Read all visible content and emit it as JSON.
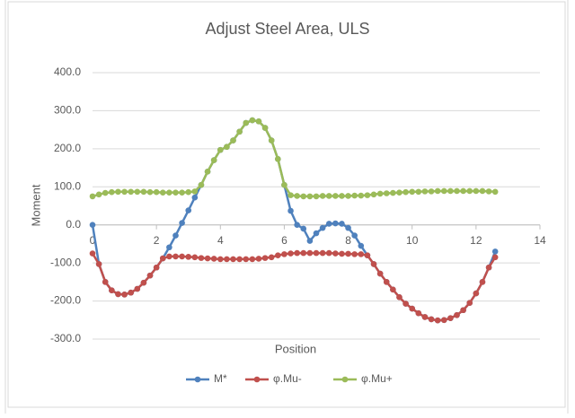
{
  "chart_data": {
    "type": "line",
    "title": "Adjust Steel Area, ULS",
    "x_label": "Position",
    "y_label": "Moment",
    "x": [
      0,
      0.2,
      0.4,
      0.6,
      0.8,
      1.0,
      1.2,
      1.4,
      1.6,
      1.8,
      2.0,
      2.2,
      2.4,
      2.6,
      2.8,
      3.0,
      3.2,
      3.4,
      3.6,
      3.8,
      4.0,
      4.2,
      4.4,
      4.6,
      4.8,
      5.0,
      5.2,
      5.4,
      5.6,
      5.8,
      6.0,
      6.2,
      6.4,
      6.6,
      6.8,
      7.0,
      7.2,
      7.4,
      7.6,
      7.8,
      8.0,
      8.2,
      8.4,
      8.6,
      8.8,
      9.0,
      9.2,
      9.4,
      9.6,
      9.8,
      10.0,
      10.2,
      10.4,
      10.6,
      10.8,
      11.0,
      11.2,
      11.4,
      11.6,
      11.8,
      12.0,
      12.2,
      12.4,
      12.6
    ],
    "series": [
      {
        "name": "M*",
        "color": "#4f81bd",
        "values": [
          0,
          -103,
          -150,
          -172,
          -182,
          -183,
          -178,
          -168,
          -152,
          -133,
          -112,
          -88,
          -59,
          -28,
          5,
          38,
          72,
          105,
          140,
          170,
          197,
          205,
          222,
          245,
          268,
          275,
          272,
          255,
          222,
          173,
          105,
          37,
          0,
          -10,
          -42,
          -22,
          -8,
          3,
          4,
          3,
          -8,
          -28,
          -55,
          -80,
          -103,
          -128,
          -150,
          -170,
          -190,
          -207,
          -220,
          -232,
          -242,
          -248,
          -251,
          -250,
          -245,
          -237,
          -224,
          -205,
          -180,
          -150,
          -112,
          -70
        ]
      },
      {
        "name": "φ.Mu-",
        "color": "#c0504d",
        "values": [
          -75,
          -103,
          -150,
          -172,
          -182,
          -183,
          -178,
          -168,
          -152,
          -133,
          -112,
          -88,
          -83,
          -83,
          -83,
          -84,
          -85,
          -87,
          -88,
          -89,
          -90,
          -90,
          -90,
          -90,
          -90,
          -90,
          -89,
          -87,
          -85,
          -80,
          -77,
          -75,
          -74,
          -74,
          -74,
          -74,
          -74,
          -74,
          -75,
          -76,
          -76,
          -77,
          -77,
          -80,
          -103,
          -128,
          -150,
          -170,
          -190,
          -207,
          -220,
          -232,
          -242,
          -248,
          -251,
          -250,
          -245,
          -237,
          -224,
          -205,
          -180,
          -150,
          -112,
          -85
        ]
      },
      {
        "name": "φ.Mu+",
        "color": "#9bbb59",
        "values": [
          75,
          80,
          84,
          86,
          87,
          87,
          87,
          87,
          87,
          86,
          86,
          85,
          85,
          85,
          85,
          86,
          88,
          105,
          140,
          170,
          197,
          205,
          222,
          245,
          268,
          275,
          272,
          255,
          222,
          173,
          105,
          78,
          76,
          75,
          75,
          75,
          76,
          76,
          76,
          76,
          76,
          77,
          77,
          78,
          80,
          82,
          83,
          84,
          85,
          86,
          87,
          87,
          88,
          88,
          89,
          89,
          89,
          89,
          89,
          89,
          89,
          89,
          88,
          87
        ]
      }
    ],
    "xlim": [
      0,
      14
    ],
    "xticks": [
      0,
      2,
      4,
      6,
      8,
      10,
      12,
      14
    ],
    "ylim": [
      -300,
      400
    ],
    "yticks": [
      {
        "value": -300,
        "label": "-300.0"
      },
      {
        "value": -200,
        "label": "-200.0"
      },
      {
        "value": -100,
        "label": "-100.0"
      },
      {
        "value": 0,
        "label": "0.0"
      },
      {
        "value": 100,
        "label": "100.0"
      },
      {
        "value": 200,
        "label": "200.0"
      },
      {
        "value": 300,
        "label": "300.0"
      },
      {
        "value": 400,
        "label": "400.0"
      }
    ],
    "grid": true,
    "legend": "bottom"
  }
}
